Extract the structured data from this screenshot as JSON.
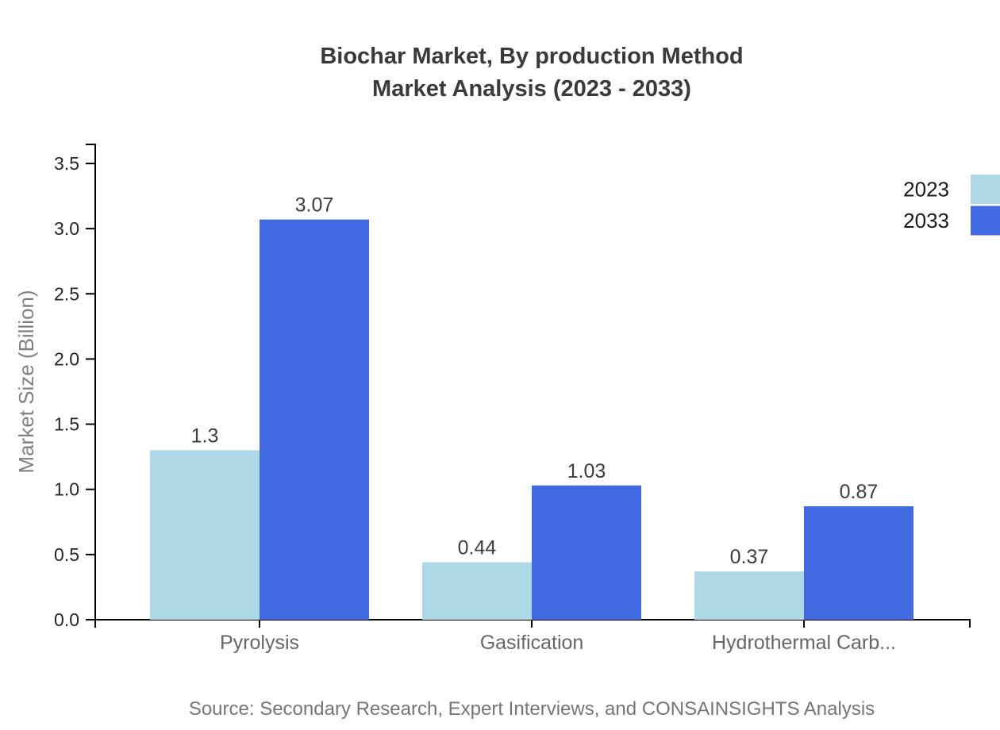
{
  "title": {
    "line1": "Biochar Market, By production Method",
    "line2": "Market Analysis (2023 - 2033)"
  },
  "source": "Source: Secondary Research, Expert Interviews, and CONSAINSIGHTS Analysis",
  "chart_data": {
    "type": "bar",
    "title": "Biochar Market, By production Method Market Analysis (2023 - 2033)",
    "categories": [
      "Pyrolysis",
      "Gasification",
      "Hydrothermal Carb..."
    ],
    "series": [
      {
        "name": "2023",
        "color": "#ADD8E6",
        "values": [
          1.3,
          0.44,
          0.37
        ],
        "labels": [
          "1.3",
          "0.44",
          "0.37"
        ]
      },
      {
        "name": "2033",
        "color": "#4169E1",
        "values": [
          3.07,
          1.03,
          0.87
        ],
        "labels": [
          "3.07",
          "1.03",
          "0.87"
        ]
      }
    ],
    "xlabel": "",
    "ylabel": "Market Size (Billion)",
    "ylim": [
      0,
      3.5
    ],
    "ytick_step": 0.5,
    "ytick_labels": [
      "0.0",
      "0.5",
      "1.0",
      "1.5",
      "2.0",
      "2.5",
      "3.0",
      "3.5"
    ],
    "grid": false,
    "legend_position": "top-right",
    "colors": {
      "axis": "#000000",
      "tick_label": "#262626",
      "category_label": "#666666",
      "value_label": "#3d3d3d",
      "title": "#3a3a3a",
      "y_axis_title": "#808080",
      "source": "#757575",
      "background": "#ffffff"
    }
  }
}
